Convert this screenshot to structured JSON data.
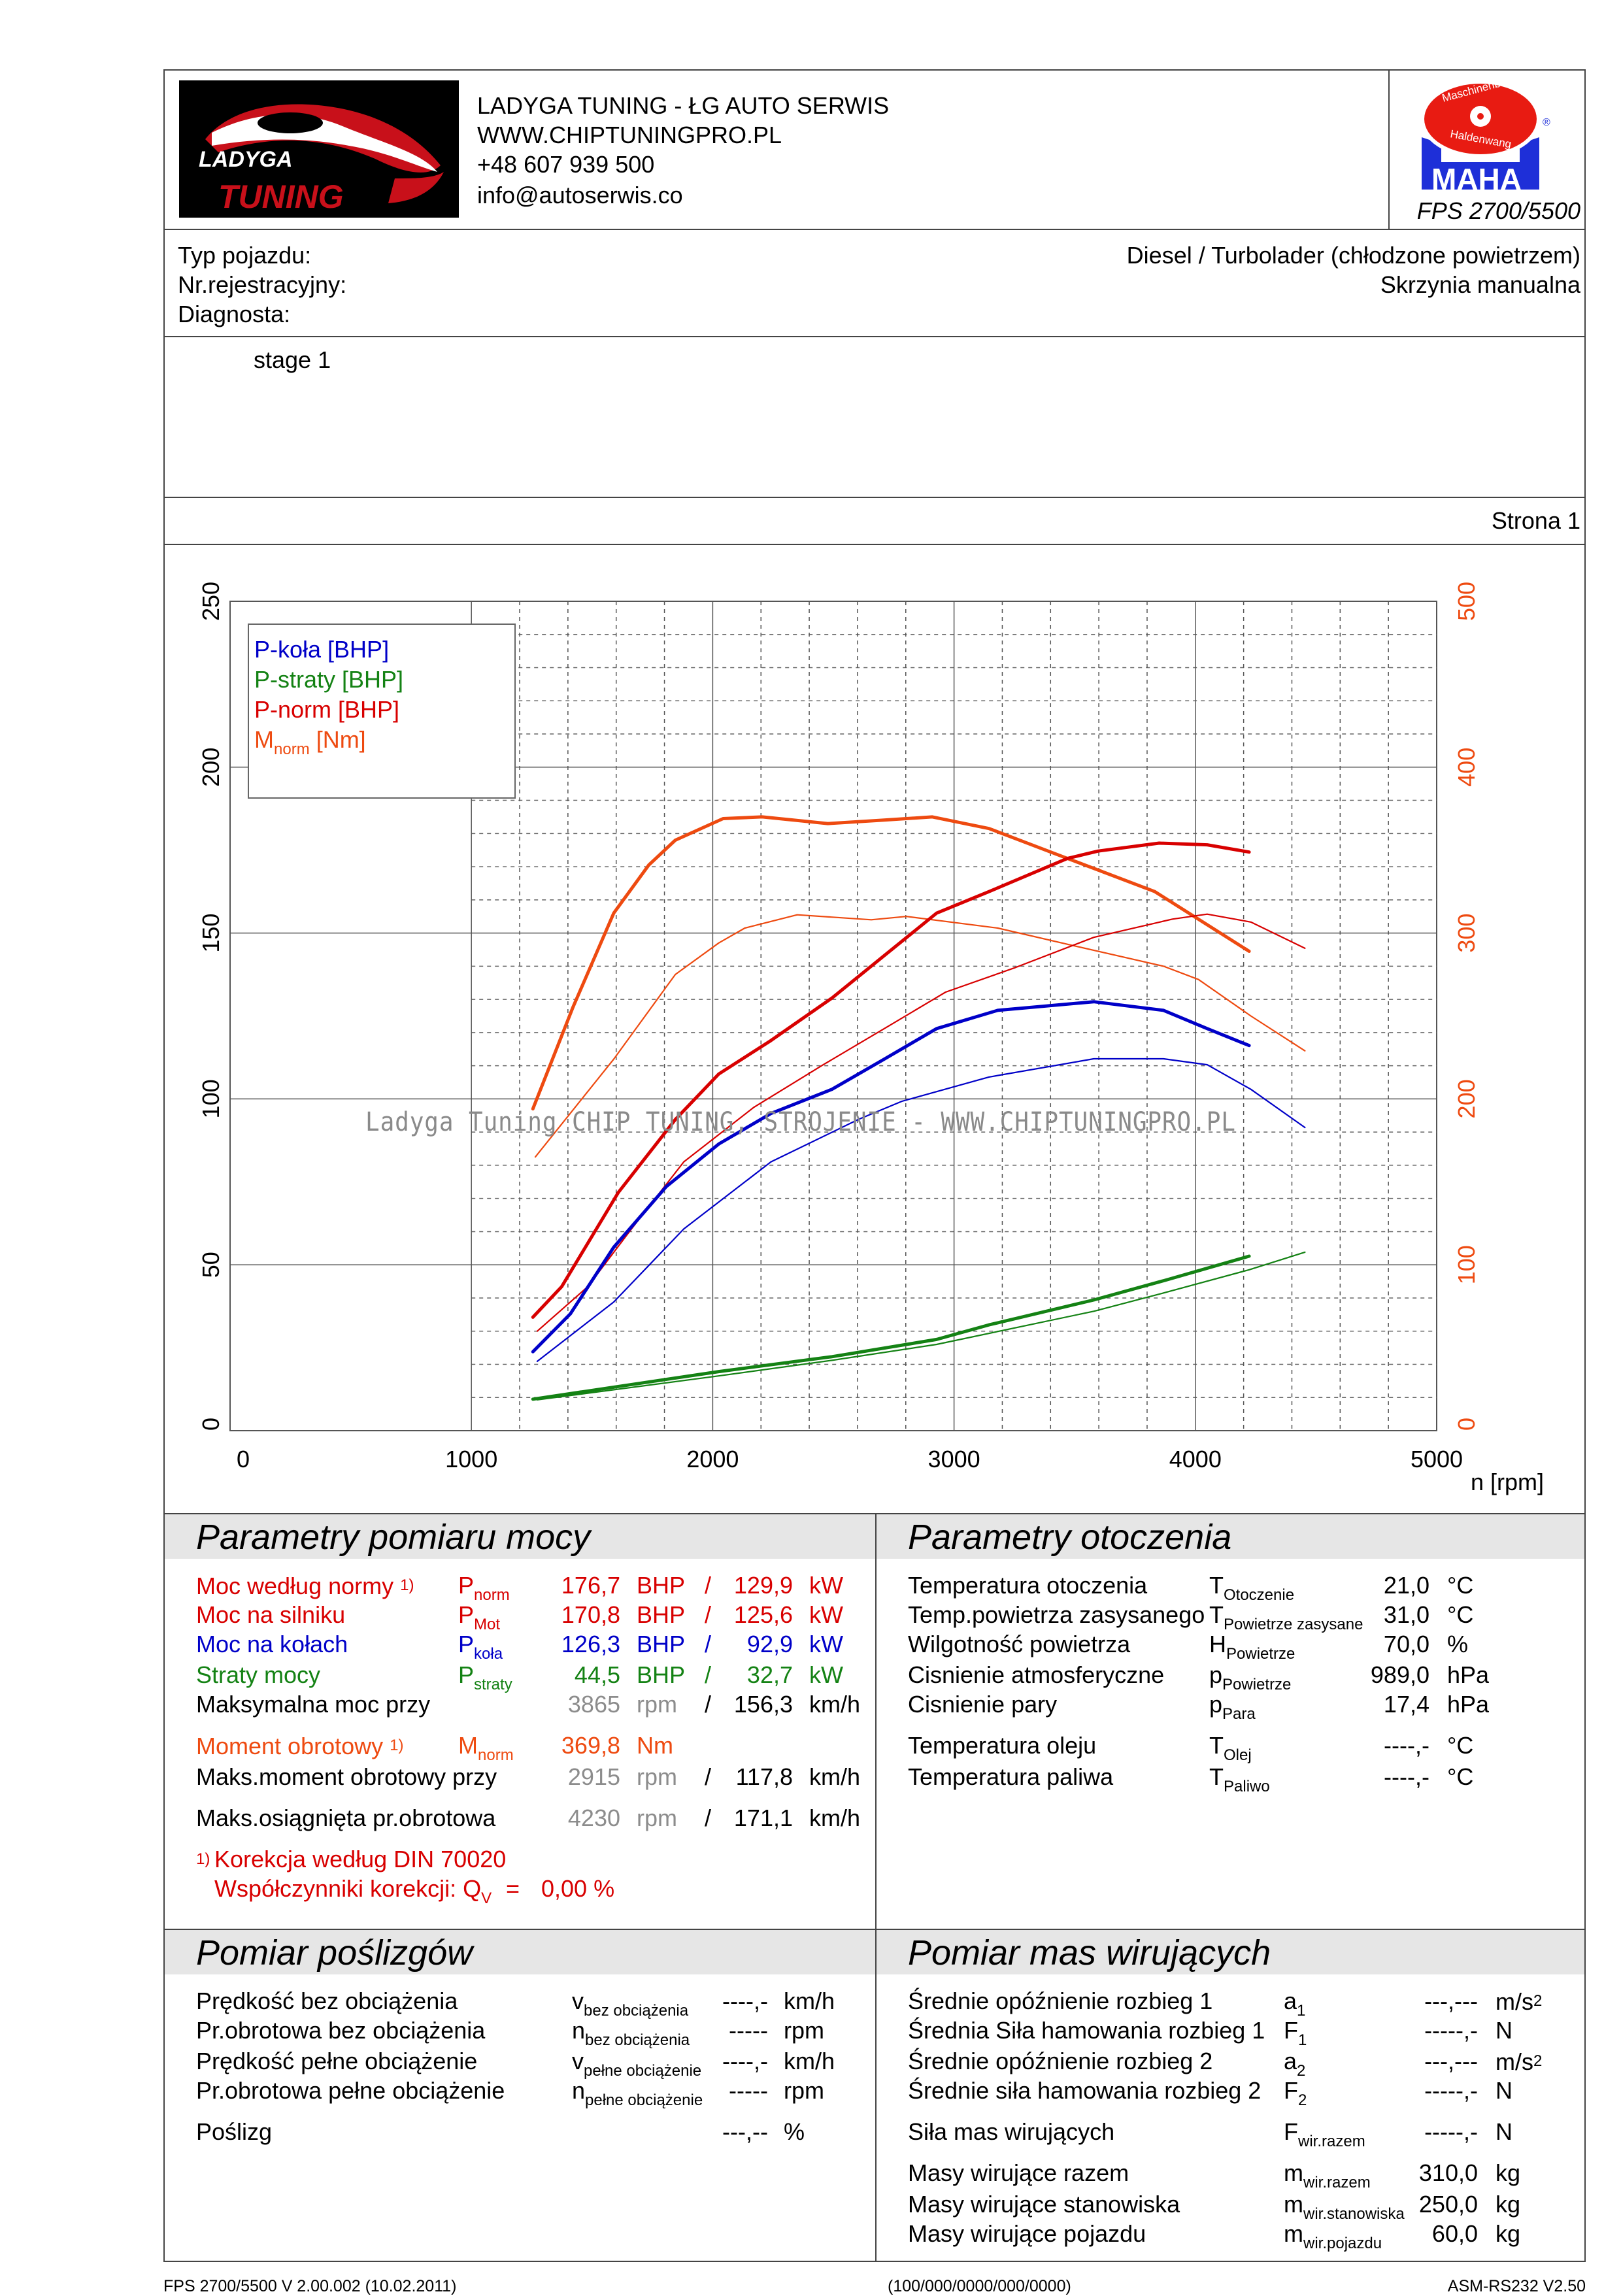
{
  "header": {
    "company": "LADYGA TUNING - ŁG AUTO SERWIS",
    "website": "WWW.CHIPTUNINGPRO.PL",
    "phone": "+48 607 939 500",
    "email": "info@autoserwis.co",
    "logo_text": "LADYGA TUNING",
    "maha_logo_text": "Maschinenbau Haldenwang MAHA",
    "device": "FPS 2700/5500"
  },
  "vehicle": {
    "type_label": "Typ pojazdu:",
    "reg_label": "Nr.rejestracyjny:",
    "diag_label": "Diagnosta:",
    "engine": "Diesel / Turbolader (chłodzone powietrzem)",
    "gearbox": "Skrzynia manualna"
  },
  "notes": "stage 1",
  "page_label": "Strona 1",
  "colors": {
    "red": "#d80000",
    "blue": "#0000c8",
    "green": "#148214",
    "orange": "#ee4a10",
    "gray": "#8c8c8c"
  },
  "chart_data": {
    "type": "line",
    "xlabel": "n [rpm]",
    "xlim": [
      0,
      5000
    ],
    "x_ticks": [
      "0",
      "1000",
      "2000",
      "3000",
      "4000",
      "5000"
    ],
    "ylim_left": [
      0,
      250
    ],
    "y_ticks_left": [
      "0",
      "50",
      "100",
      "150",
      "200",
      "250"
    ],
    "ylim_right": [
      0,
      500
    ],
    "y_ticks_right": [
      "0",
      "100",
      "200",
      "300",
      "400",
      "500"
    ],
    "legend": [
      "P-koła [BHP]",
      "P-straty [BHP]",
      "P-norm [BHP]",
      "M",
      "norm",
      " [Nm]"
    ],
    "legend_placement": "top-left",
    "watermark": "Ladyga Tuning CHIP TUNING, STROJENIE - WWW.CHIPTUNINGPRO.PL",
    "series": [
      {
        "name": "M-norm tuned [Nm]",
        "axis": "right",
        "color": "#ee4a10",
        "width": "thick",
        "points": [
          [
            1255,
            194
          ],
          [
            1420,
            255
          ],
          [
            1590,
            312
          ],
          [
            1735,
            341
          ],
          [
            1845,
            356
          ],
          [
            2043,
            369
          ],
          [
            2205,
            370
          ],
          [
            2477,
            366
          ],
          [
            2700,
            368
          ],
          [
            2910,
            370
          ],
          [
            3145,
            363
          ],
          [
            3470,
            345
          ],
          [
            3832,
            325
          ],
          [
            4223,
            289
          ]
        ]
      },
      {
        "name": "M-norm stock [Nm]",
        "axis": "right",
        "color": "#ee4a10",
        "width": "thin",
        "points": [
          [
            1265,
            165
          ],
          [
            1590,
            224
          ],
          [
            1845,
            275
          ],
          [
            2025,
            294
          ],
          [
            2133,
            303
          ],
          [
            2350,
            311
          ],
          [
            2657,
            308
          ],
          [
            2802,
            310
          ],
          [
            3181,
            303
          ],
          [
            3507,
            292
          ],
          [
            3868,
            280
          ],
          [
            4013,
            272
          ],
          [
            4230,
            250
          ],
          [
            4454,
            229
          ]
        ]
      },
      {
        "name": "P-norm tuned [BHP]",
        "axis": "left",
        "color": "#d80000",
        "width": "thick",
        "points": [
          [
            1255,
            34.2
          ],
          [
            1374,
            43.4
          ],
          [
            1609,
            71.8
          ],
          [
            1845,
            93.8
          ],
          [
            2025,
            107.5
          ],
          [
            2241,
            117.6
          ],
          [
            2494,
            130.4
          ],
          [
            2711,
            143.2
          ],
          [
            2928,
            156
          ],
          [
            3145,
            162.5
          ],
          [
            3470,
            172.5
          ],
          [
            3597,
            174.7
          ],
          [
            3850,
            177.1
          ],
          [
            4049,
            176.6
          ],
          [
            4223,
            174.4
          ]
        ]
      },
      {
        "name": "P-norm stock [BHP]",
        "axis": "left",
        "color": "#d80000",
        "width": "thin",
        "points": [
          [
            1273,
            30
          ],
          [
            1482,
            43.4
          ],
          [
            1663,
            60.8
          ],
          [
            1880,
            81
          ],
          [
            2169,
            97.4
          ],
          [
            2458,
            110.3
          ],
          [
            2711,
            121.2
          ],
          [
            2965,
            132.2
          ],
          [
            3254,
            139.6
          ],
          [
            3579,
            148.7
          ],
          [
            3905,
            154.2
          ],
          [
            4049,
            155.7
          ],
          [
            4230,
            153.3
          ],
          [
            4454,
            145.4
          ]
        ]
      },
      {
        "name": "P-koła tuned [BHP]",
        "axis": "left",
        "color": "#0000c8",
        "width": "thick",
        "points": [
          [
            1255,
            23.8
          ],
          [
            1410,
            35.2
          ],
          [
            1590,
            55.3
          ],
          [
            1808,
            73.6
          ],
          [
            2025,
            86.4
          ],
          [
            2241,
            95.6
          ],
          [
            2494,
            102.9
          ],
          [
            2711,
            112
          ],
          [
            2928,
            121.2
          ],
          [
            3181,
            126.7
          ],
          [
            3579,
            129.3
          ],
          [
            3868,
            126.7
          ],
          [
            4049,
            121.2
          ],
          [
            4223,
            116.1
          ]
        ]
      },
      {
        "name": "P-koła stock [BHP]",
        "axis": "left",
        "color": "#0000c8",
        "width": "thin",
        "points": [
          [
            1273,
            20.9
          ],
          [
            1590,
            38.8
          ],
          [
            1880,
            60.8
          ],
          [
            2241,
            81
          ],
          [
            2603,
            93.8
          ],
          [
            2784,
            99.3
          ],
          [
            3145,
            106.6
          ],
          [
            3579,
            112.1
          ],
          [
            3868,
            112.1
          ],
          [
            4049,
            110.3
          ],
          [
            4230,
            102.9
          ],
          [
            4454,
            91.4
          ]
        ]
      },
      {
        "name": "P-straty tuned [BHP]",
        "axis": "left",
        "color": "#148214",
        "width": "thick",
        "points": [
          [
            1255,
            9.5
          ],
          [
            2025,
            17.8
          ],
          [
            2494,
            22.3
          ],
          [
            2928,
            27.5
          ],
          [
            3145,
            31.9
          ],
          [
            3579,
            39.4
          ],
          [
            3868,
            45.2
          ],
          [
            4223,
            52.6
          ]
        ]
      },
      {
        "name": "P-straty stock [BHP]",
        "axis": "left",
        "color": "#148214",
        "width": "thin",
        "points": [
          [
            1273,
            9.3
          ],
          [
            2025,
            16.5
          ],
          [
            2494,
            21.2
          ],
          [
            2928,
            26
          ],
          [
            3579,
            36
          ],
          [
            3868,
            41.5
          ],
          [
            4223,
            48.5
          ],
          [
            4454,
            53.8
          ]
        ]
      }
    ]
  },
  "power": {
    "title": "Parametry pomiaru mocy",
    "rows": [
      {
        "label": "Moc według normy",
        "note": "1)",
        "sym": "P",
        "sub": "norm",
        "v1": "176,7",
        "u1": "BHP",
        "sep": "/",
        "v2": "129,9",
        "u2": "kW",
        "color": "red"
      },
      {
        "label": "Moc na silniku",
        "note": "",
        "sym": "P",
        "sub": "Mot",
        "v1": "170,8",
        "u1": "BHP",
        "sep": "/",
        "v2": "125,6",
        "u2": "kW",
        "color": "red"
      },
      {
        "label": "Moc na kołach",
        "note": "",
        "sym": "P",
        "sub": "koła",
        "v1": "126,3",
        "u1": "BHP",
        "sep": "/",
        "v2": "92,9",
        "u2": "kW",
        "color": "blue"
      },
      {
        "label": "Straty mocy",
        "note": "",
        "sym": "P",
        "sub": "straty",
        "v1": "44,5",
        "u1": "BHP",
        "sep": "/",
        "v2": "32,7",
        "u2": "kW",
        "color": "green"
      },
      {
        "label": "Maksymalna moc przy",
        "note": "",
        "sym": "",
        "sub": "",
        "v1": "3865",
        "u1": "rpm",
        "sep": "/",
        "v2": "156,3",
        "u2": "km/h",
        "color": "black"
      },
      {
        "label": "Moment obrotowy",
        "note": "1)",
        "sym": "M",
        "sub": "norm",
        "v1": "369,8",
        "u1": "Nm",
        "sep": "",
        "v2": "",
        "u2": "",
        "color": "orange"
      },
      {
        "label": "Maks.moment obrotowy przy",
        "note": "",
        "sym": "",
        "sub": "",
        "v1": "2915",
        "u1": "rpm",
        "sep": "/",
        "v2": "117,8",
        "u2": "km/h",
        "color": "black"
      },
      {
        "label": "Maks.osiągnięta pr.obrotowa",
        "note": "",
        "sym": "",
        "sub": "",
        "v1": "4230",
        "u1": "rpm",
        "sep": "/",
        "v2": "171,1",
        "u2": "km/h",
        "color": "black"
      }
    ],
    "footnote_mark": "1)",
    "footnote": "Korekcja według DIN 70020",
    "coeff_label": "Współczynniki korekcji: Q",
    "coeff_sub": "V",
    "coeff_eq": "=",
    "coeff_value": "0,00 %"
  },
  "ambient": {
    "title": "Parametry otoczenia",
    "rows": [
      {
        "label": "Temperatura otoczenia",
        "sym": "T",
        "sub": "Otoczenie",
        "value": "21,0",
        "unit": "°C"
      },
      {
        "label": "Temp.powietrza zasysanego",
        "sym": "T",
        "sub": "Powietrze zasysane",
        "value": "31,0",
        "unit": "°C"
      },
      {
        "label": "Wilgotność powietrza",
        "sym": "H",
        "sub": "Powietrze",
        "value": "70,0",
        "unit": "%"
      },
      {
        "label": "Cisnienie atmosferyczne",
        "sym": "p",
        "sub": "Powietrze",
        "value": "989,0",
        "unit": "hPa"
      },
      {
        "label": "Cisnienie pary",
        "sym": "p",
        "sub": "Para",
        "value": "17,4",
        "unit": "hPa"
      },
      {
        "label": "Temperatura oleju",
        "sym": "T",
        "sub": "Olej",
        "value": "----,-",
        "unit": "°C"
      },
      {
        "label": "Temperatura paliwa",
        "sym": "T",
        "sub": "Paliwo",
        "value": "----,-",
        "unit": "°C"
      }
    ]
  },
  "slip": {
    "title": "Pomiar poślizgów",
    "rows": [
      {
        "label": "Prędkość bez obciążenia",
        "sym": "v",
        "sub": "bez obciążenia",
        "value": "----,-",
        "unit": "km/h"
      },
      {
        "label": "Pr.obrotowa bez obciążenia",
        "sym": "n",
        "sub": "bez obciążenia",
        "value": "-----",
        "unit": "rpm"
      },
      {
        "label": "Prędkość pełne obciążenie",
        "sym": "v",
        "sub": "pełne obciążenie",
        "value": "----,-",
        "unit": "km/h"
      },
      {
        "label": "Pr.obrotowa pełne obciążenie",
        "sym": "n",
        "sub": "pełne obciążenie",
        "value": "-----",
        "unit": "rpm"
      },
      {
        "label": "Poślizg",
        "sym": "",
        "sub": "",
        "value": "---,--",
        "unit": "%"
      }
    ]
  },
  "masses": {
    "title": "Pomiar mas wirujących",
    "rows": [
      {
        "label": "Średnie opóźnienie rozbieg 1",
        "sym": "a",
        "sub": "1",
        "value": "---,---",
        "unit": "m/s",
        "sup": "2"
      },
      {
        "label": "Średnia Siła hamowania rozbieg 1",
        "sym": "F",
        "sub": "1",
        "value": "-----,-",
        "unit": "N",
        "sup": ""
      },
      {
        "label": "Średnie opóźnienie rozbieg 2",
        "sym": "a",
        "sub": "2",
        "value": "---,---",
        "unit": "m/s",
        "sup": "2"
      },
      {
        "label": "Średnie siła hamowania rozbieg 2",
        "sym": "F",
        "sub": "2",
        "value": "-----,-",
        "unit": "N",
        "sup": ""
      },
      {
        "label": "Siła mas wirujących",
        "sym": "F",
        "sub": "wir.razem",
        "value": "-----,-",
        "unit": "N",
        "sup": ""
      },
      {
        "label": "Masy wirujące razem",
        "sym": "m",
        "sub": "wir.razem",
        "value": "310,0",
        "unit": "kg",
        "sup": ""
      },
      {
        "label": "Masy wirujące stanowiska",
        "sym": "m",
        "sub": "wir.stanowiska",
        "value": "250,0",
        "unit": "kg",
        "sup": ""
      },
      {
        "label": "Masy wirujące pojazdu",
        "sym": "m",
        "sub": "wir.pojazdu",
        "value": "60,0",
        "unit": "kg",
        "sup": ""
      }
    ]
  },
  "footer": {
    "left": "FPS 2700/5500 V 2.00.002 (10.02.2011)",
    "center": "(100/000/0000/000/0000)",
    "right": "ASM-RS232 V2.50"
  }
}
